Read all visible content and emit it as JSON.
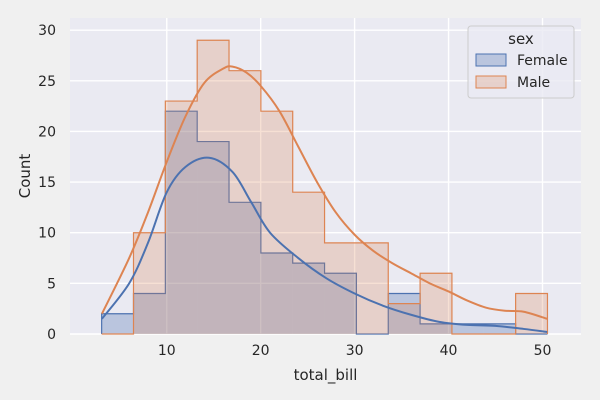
{
  "chart_data": {
    "type": "histogram",
    "xlabel": "total_bill",
    "ylabel": "Count",
    "xlim": [
      -0.3,
      54.1
    ],
    "ylim": [
      0,
      31.2
    ],
    "xticks": [
      10,
      20,
      30,
      40,
      50
    ],
    "yticks": [
      0,
      5,
      10,
      15,
      20,
      25,
      30
    ],
    "grid": true,
    "legend": {
      "title": "sex",
      "placement": "top-right"
    },
    "bin_edges": [
      3.07,
      6.46,
      9.85,
      13.24,
      16.63,
      20.02,
      23.41,
      26.8,
      30.19,
      33.58,
      36.97,
      40.36,
      43.75,
      47.14,
      50.53
    ],
    "series": [
      {
        "name": "Female",
        "line_color": "#4c72b0",
        "fill_color": "rgba(76,114,176,0.30)",
        "counts": [
          2,
          4,
          22,
          19,
          13,
          8,
          7,
          6,
          0,
          4,
          1,
          1,
          1,
          0
        ],
        "kde": [
          [
            3.1,
            1.5
          ],
          [
            6,
            5
          ],
          [
            8,
            9
          ],
          [
            10,
            14
          ],
          [
            12,
            16.5
          ],
          [
            14.5,
            17.4
          ],
          [
            17,
            16
          ],
          [
            19,
            13
          ],
          [
            21,
            10
          ],
          [
            24,
            7.5
          ],
          [
            27,
            5.5
          ],
          [
            30,
            4
          ],
          [
            33,
            2.8
          ],
          [
            36,
            1.9
          ],
          [
            39,
            1.2
          ],
          [
            42,
            0.9
          ],
          [
            45,
            0.8
          ],
          [
            48,
            0.5
          ],
          [
            50.5,
            0.2
          ]
        ]
      },
      {
        "name": "Male",
        "line_color": "#dd8452",
        "fill_color": "rgba(221,132,82,0.25)",
        "counts": [
          0,
          10,
          23,
          29,
          26,
          22,
          14,
          9,
          9,
          3,
          6,
          0,
          0,
          4
        ],
        "kde": [
          [
            3.1,
            2
          ],
          [
            6,
            7.5
          ],
          [
            8,
            12
          ],
          [
            10,
            17
          ],
          [
            12,
            21.5
          ],
          [
            14,
            24.8
          ],
          [
            16,
            26.2
          ],
          [
            17,
            26.4
          ],
          [
            18.5,
            25.8
          ],
          [
            20,
            24.5
          ],
          [
            22,
            22
          ],
          [
            24,
            18.5
          ],
          [
            26,
            15
          ],
          [
            28,
            12
          ],
          [
            30,
            9.8
          ],
          [
            32,
            8.2
          ],
          [
            34,
            7
          ],
          [
            36,
            6
          ],
          [
            38,
            5
          ],
          [
            40,
            4.2
          ],
          [
            42,
            3.3
          ],
          [
            44,
            2.6
          ],
          [
            46,
            2.3
          ],
          [
            48,
            2.2
          ],
          [
            50.5,
            1.5
          ]
        ]
      }
    ]
  }
}
